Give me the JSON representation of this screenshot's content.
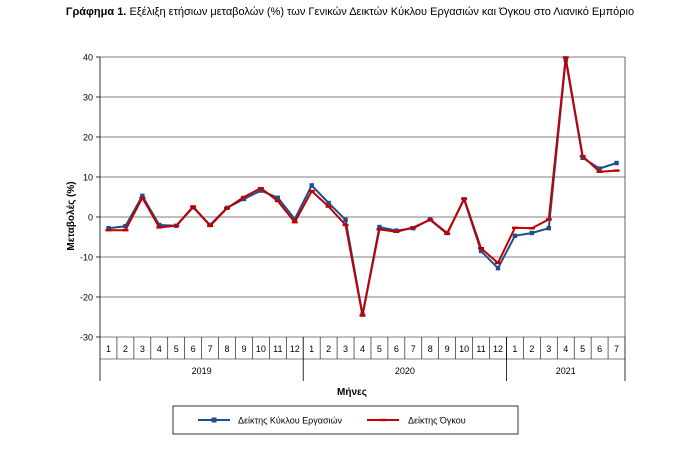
{
  "caption": {
    "label": "Γράφημα 1.",
    "text": "Εξέλιξη ετήσιων μεταβολών (%) των Γενικών Δεικτών Κύκλου Εργασιών και Όγκου στο Λιανικό Εμπόριο"
  },
  "chart_data": {
    "type": "line",
    "xlabel": "Μήνες",
    "ylabel": "Μεταβολές (%)",
    "ylim": [
      -30,
      40
    ],
    "yticks": [
      -30,
      -20,
      -10,
      0,
      10,
      20,
      30,
      40
    ],
    "grid": "horizontal",
    "legend_position": "bottom",
    "categories": [
      "1",
      "2",
      "3",
      "4",
      "5",
      "6",
      "7",
      "8",
      "9",
      "10",
      "11",
      "12",
      "1",
      "2",
      "3",
      "4",
      "5",
      "6",
      "7",
      "8",
      "9",
      "10",
      "11",
      "12",
      "1",
      "2",
      "3",
      "4",
      "5",
      "6",
      "7"
    ],
    "year_groups": [
      {
        "label": "2019",
        "count": 12
      },
      {
        "label": "2020",
        "count": 12
      },
      {
        "label": "2021",
        "count": 7
      }
    ],
    "series": [
      {
        "name": "Δείκτης Κύκλου Εργασιών",
        "color": "#1F4E8C",
        "marker": "square",
        "values": [
          -2.8,
          -2.3,
          5.3,
          -2.0,
          -2.2,
          2.4,
          -2.0,
          2.3,
          4.5,
          6.6,
          4.8,
          -0.5,
          7.9,
          3.5,
          -0.7,
          -24.4,
          -2.5,
          -3.4,
          -2.8,
          -0.6,
          -4.0,
          4.4,
          -8.5,
          -12.8,
          -4.7,
          -4.0,
          -2.8,
          39.3,
          14.8,
          12.1,
          13.5
        ]
      },
      {
        "name": "Δείκτης Όγκου",
        "color": "#C00000",
        "marker": "dash",
        "values": [
          -3.3,
          -3.3,
          4.8,
          -2.6,
          -2.2,
          2.6,
          -2.2,
          2.2,
          5.0,
          7.2,
          4.0,
          -1.3,
          6.5,
          2.6,
          -2.0,
          -24.6,
          -3.1,
          -3.7,
          -2.6,
          -0.7,
          -4.2,
          4.6,
          -7.8,
          -11.5,
          -2.7,
          -2.8,
          -0.6,
          39.9,
          15.2,
          11.3,
          11.6
        ]
      }
    ]
  }
}
